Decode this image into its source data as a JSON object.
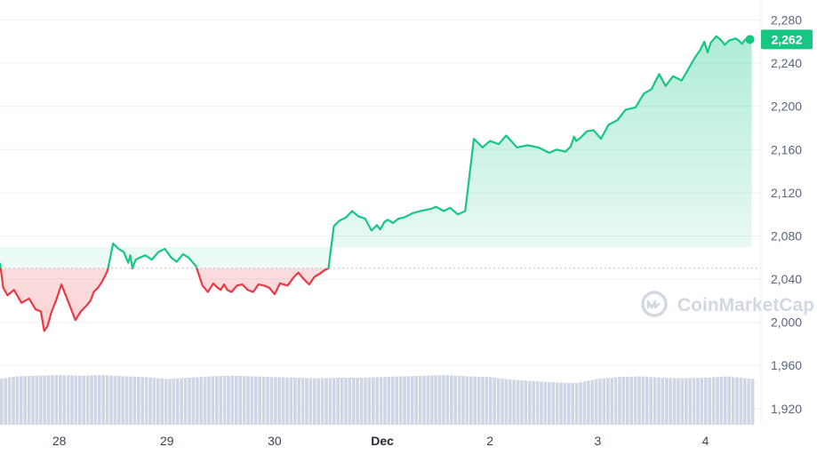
{
  "chart_data": {
    "type": "line",
    "title": "",
    "xlabel": "",
    "ylabel": "",
    "baseline_price": 2050,
    "ylim": [
      1905,
      2292
    ],
    "y_ticks": [
      "2,280",
      "2,240",
      "2,200",
      "2,160",
      "2,120",
      "2,080",
      "2,040",
      "2,000",
      "1,960",
      "1,920"
    ],
    "y_tick_values": [
      2280,
      2240,
      2200,
      2160,
      2120,
      2080,
      2040,
      2000,
      1960,
      1920
    ],
    "x_range_days": [
      27.45,
      34.45
    ],
    "x_ticks": [
      {
        "label": "28",
        "day": 28,
        "bold": false
      },
      {
        "label": "29",
        "day": 29,
        "bold": false
      },
      {
        "label": "30",
        "day": 30,
        "bold": false
      },
      {
        "label": "Dec",
        "day": 31,
        "bold": true
      },
      {
        "label": "2",
        "day": 32,
        "bold": false
      },
      {
        "label": "3",
        "day": 33,
        "bold": false
      },
      {
        "label": "4",
        "day": 34,
        "bold": false
      }
    ],
    "current_price": 2262,
    "current_price_label": "2,262",
    "series": [
      {
        "x": [
          27.45,
          27.48,
          27.52,
          27.58,
          27.65,
          27.72,
          27.78,
          27.83,
          27.86,
          27.89,
          27.93,
          27.97,
          28.02,
          28.06,
          28.1,
          28.15,
          28.2,
          28.25,
          28.29,
          28.32,
          28.36,
          28.4,
          28.45,
          28.5,
          28.55,
          28.6,
          28.64,
          28.66,
          28.68,
          28.71,
          28.75,
          28.8,
          28.86,
          28.92,
          28.98,
          29.04,
          29.09,
          29.15,
          29.2,
          29.27,
          29.33,
          29.38,
          29.43,
          29.47,
          29.5,
          29.53,
          29.56,
          29.6,
          29.65,
          29.7,
          29.75,
          29.8,
          29.85,
          29.9,
          29.95,
          30.0,
          30.05,
          30.12,
          30.18,
          30.22,
          30.27,
          30.32,
          30.37,
          30.42,
          30.46,
          30.5,
          30.55,
          30.6,
          30.66,
          30.72,
          30.78,
          30.84,
          30.9,
          30.95,
          30.98,
          31.02,
          31.05,
          31.1,
          31.15,
          31.2,
          31.28,
          31.35,
          31.4,
          31.45,
          31.5,
          31.57,
          31.63,
          31.7,
          31.77,
          31.85,
          31.93,
          32.0,
          32.08,
          32.15,
          32.25,
          32.35,
          32.45,
          32.55,
          32.62,
          32.7,
          32.75,
          32.78,
          32.8,
          32.84,
          32.9,
          32.96,
          33.03,
          33.1,
          33.18,
          33.26,
          33.35,
          33.43,
          33.5,
          33.57,
          33.63,
          33.7,
          33.78,
          33.85,
          33.9,
          33.95,
          33.99,
          34.02,
          34.05,
          34.1,
          34.14,
          34.18,
          34.22,
          34.25,
          34.28,
          34.31,
          34.34,
          34.37,
          34.4,
          34.43
        ],
        "values": [
          2055,
          2032,
          2025,
          2030,
          2018,
          2022,
          2012,
          2010,
          1992,
          1996,
          2010,
          2020,
          2035,
          2025,
          2015,
          2002,
          2010,
          2015,
          2020,
          2028,
          2032,
          2038,
          2048,
          2073,
          2068,
          2065,
          2055,
          2062,
          2050,
          2058,
          2060,
          2062,
          2058,
          2065,
          2068,
          2060,
          2056,
          2063,
          2060,
          2052,
          2034,
          2028,
          2036,
          2032,
          2030,
          2035,
          2030,
          2028,
          2034,
          2035,
          2030,
          2028,
          2035,
          2034,
          2032,
          2026,
          2036,
          2034,
          2042,
          2046,
          2040,
          2035,
          2042,
          2045,
          2048,
          2050,
          2089,
          2094,
          2097,
          2103,
          2098,
          2096,
          2085,
          2090,
          2086,
          2093,
          2095,
          2092,
          2096,
          2097,
          2101,
          2103,
          2104,
          2105,
          2107,
          2103,
          2106,
          2100,
          2103,
          2170,
          2162,
          2168,
          2165,
          2173,
          2162,
          2164,
          2162,
          2157,
          2160,
          2158,
          2163,
          2172,
          2168,
          2171,
          2177,
          2178,
          2170,
          2183,
          2187,
          2197,
          2199,
          2212,
          2216,
          2230,
          2219,
          2228,
          2224,
          2236,
          2245,
          2252,
          2260,
          2250,
          2259,
          2265,
          2262,
          2257,
          2261,
          2262,
          2263,
          2261,
          2258,
          2262,
          2262,
          2262
        ]
      }
    ],
    "volume": {
      "x": [
        27.45,
        27.6,
        27.8,
        28.0,
        28.2,
        28.4,
        28.6,
        28.8,
        29.0,
        29.2,
        29.4,
        29.6,
        29.8,
        30.0,
        30.2,
        30.4,
        30.6,
        30.8,
        31.0,
        31.2,
        31.4,
        31.6,
        31.8,
        32.0,
        32.2,
        32.4,
        32.6,
        32.8,
        33.0,
        33.2,
        33.4,
        33.6,
        33.8,
        34.0,
        34.2,
        34.45
      ],
      "values": [
        0.58,
        0.62,
        0.63,
        0.64,
        0.63,
        0.64,
        0.62,
        0.61,
        0.58,
        0.6,
        0.62,
        0.63,
        0.62,
        0.61,
        0.6,
        0.59,
        0.6,
        0.6,
        0.61,
        0.62,
        0.63,
        0.64,
        0.62,
        0.61,
        0.57,
        0.55,
        0.53,
        0.52,
        0.58,
        0.61,
        0.62,
        0.6,
        0.59,
        0.6,
        0.62,
        0.58
      ]
    }
  },
  "watermark": {
    "label": "CoinMarketCap"
  },
  "colors": {
    "up": "#16c784",
    "down": "#ea3943",
    "grid": "#eef0f3",
    "volume": "#cfd6e4",
    "baseline": "#b5bcc8"
  }
}
